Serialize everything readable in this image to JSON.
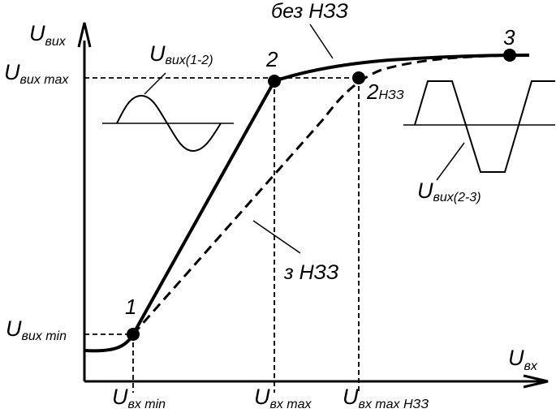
{
  "axes": {
    "y_label_main": "U",
    "y_label_sub": "вих",
    "x_label_main": "U",
    "x_label_sub": "вх"
  },
  "y_ticks": [
    {
      "main": "U",
      "sub": "вих max"
    },
    {
      "main": "U",
      "sub": "вих min"
    }
  ],
  "x_ticks": [
    {
      "main": "U",
      "sub": "вх min"
    },
    {
      "main": "U",
      "sub": "вх max"
    },
    {
      "main": "U",
      "sub": "вх max НЗЗ"
    }
  ],
  "points": {
    "p1": "1",
    "p2": "2",
    "p2nzz_main": "2",
    "p2nzz_sub": "НЗЗ",
    "p3": "3"
  },
  "curve_labels": {
    "without_nfb": "без НЗЗ",
    "with_nfb": "з НЗЗ"
  },
  "waveforms": {
    "sine_main": "U",
    "sine_sub": "вих(1-2)",
    "clipped_main": "U",
    "clipped_sub": "вих(2-3)"
  }
}
